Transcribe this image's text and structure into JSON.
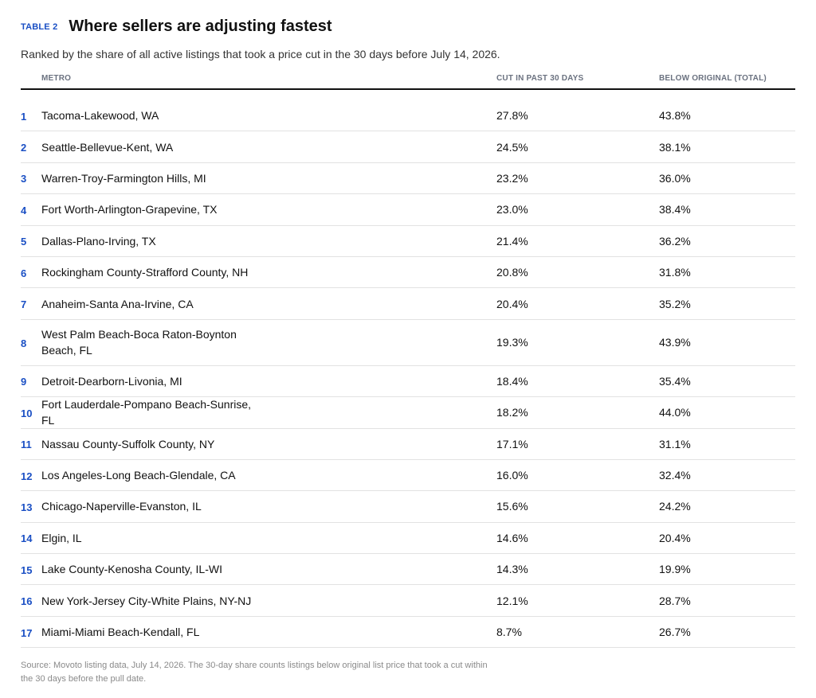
{
  "header": {
    "table_label": "TABLE 2",
    "title": "Where sellers are adjusting fastest",
    "subtitle": "Ranked by the share of all active listings that took a price cut in the 30 days before July 14, 2026."
  },
  "columns": {
    "metro": "METRO",
    "cut": "CUT IN PAST 30 DAYS",
    "below": "BELOW ORIGINAL (TOTAL)"
  },
  "rows": [
    {
      "rank": "1",
      "metro": "Tacoma-Lakewood, WA",
      "cut": "27.8%",
      "below": "43.8%"
    },
    {
      "rank": "2",
      "metro": "Seattle-Bellevue-Kent, WA",
      "cut": "24.5%",
      "below": "38.1%"
    },
    {
      "rank": "3",
      "metro": "Warren-Troy-Farmington Hills, MI",
      "cut": "23.2%",
      "below": "36.0%"
    },
    {
      "rank": "4",
      "metro": "Fort Worth-Arlington-Grapevine, TX",
      "cut": "23.0%",
      "below": "38.4%"
    },
    {
      "rank": "5",
      "metro": "Dallas-Plano-Irving, TX",
      "cut": "21.4%",
      "below": "36.2%"
    },
    {
      "rank": "6",
      "metro": "Rockingham County-Strafford County, NH",
      "cut": "20.8%",
      "below": "31.8%"
    },
    {
      "rank": "7",
      "metro": "Anaheim-Santa Ana-Irvine, CA",
      "cut": "20.4%",
      "below": "35.2%"
    },
    {
      "rank": "8",
      "metro": "West Palm Beach-Boca Raton-Boynton Beach, FL",
      "cut": "19.3%",
      "below": "43.9%"
    },
    {
      "rank": "9",
      "metro": "Detroit-Dearborn-Livonia, MI",
      "cut": "18.4%",
      "below": "35.4%"
    },
    {
      "rank": "10",
      "metro": "Fort Lauderdale-Pompano Beach-Sunrise, FL",
      "cut": "18.2%",
      "below": "44.0%"
    },
    {
      "rank": "11",
      "metro": "Nassau County-Suffolk County, NY",
      "cut": "17.1%",
      "below": "31.1%"
    },
    {
      "rank": "12",
      "metro": "Los Angeles-Long Beach-Glendale, CA",
      "cut": "16.0%",
      "below": "32.4%"
    },
    {
      "rank": "13",
      "metro": "Chicago-Naperville-Evanston, IL",
      "cut": "15.6%",
      "below": "24.2%"
    },
    {
      "rank": "14",
      "metro": "Elgin, IL",
      "cut": "14.6%",
      "below": "20.4%"
    },
    {
      "rank": "15",
      "metro": "Lake County-Kenosha County, IL-WI",
      "cut": "14.3%",
      "below": "19.9%"
    },
    {
      "rank": "16",
      "metro": "New York-Jersey City-White Plains, NY-NJ",
      "cut": "12.1%",
      "below": "28.7%"
    },
    {
      "rank": "17",
      "metro": "Miami-Miami Beach-Kendall, FL",
      "cut": "8.7%",
      "below": "26.7%"
    }
  ],
  "source": "Source: Movoto listing data, July 14, 2026. The 30-day share counts listings below original list price that took a cut within the 30 days before the pull date.",
  "colors": {
    "accent": "#1a4fc4",
    "text": "#111111",
    "muted": "#6b7280",
    "divider": "#e2e2e2"
  }
}
